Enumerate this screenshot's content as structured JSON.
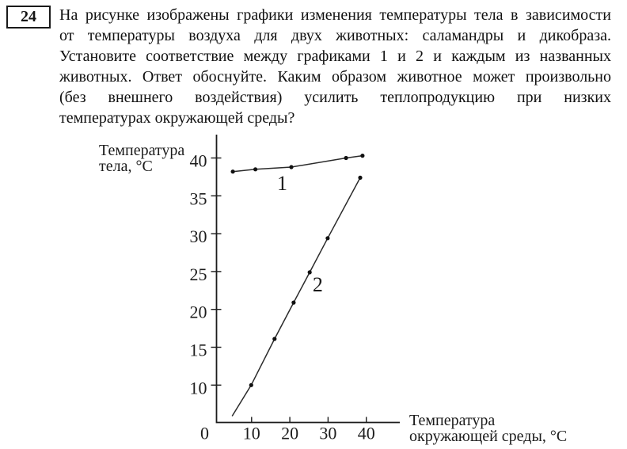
{
  "question": {
    "number": "24",
    "lines": [
      "На рисунке изображены графики изменения температуры тела в зависимости",
      "от температуры воздуха для двух животных: саламандры и дикобраза.",
      "Установите соответствие между графиками 1 и 2 и каждым из названных",
      "животных. Ответ обоснуйте. Каким образом животное может произвольно",
      "(без внешнего воздействия) усилить теплопродукцию при низких",
      "температурах окружающей среды?"
    ]
  },
  "chart_data": {
    "type": "line",
    "title": "",
    "ylabel_lines": [
      "Температура",
      "тела, °C"
    ],
    "xlabel_lines": [
      "Температура",
      "окружающей среды, °C"
    ],
    "origin_label": "0",
    "x_ticks": [
      10,
      20,
      30,
      40
    ],
    "y_ticks": [
      10,
      15,
      20,
      25,
      30,
      35,
      40
    ],
    "xlim": [
      0,
      49
    ],
    "ylim": [
      5,
      43
    ],
    "grid": false,
    "legend": "inline-numeric-labels",
    "ink_color": "#1c1c1c",
    "series": [
      {
        "name": "graph-1",
        "label": "1",
        "label_pos": [
          18,
          36.7
        ],
        "points": [
          [
            5.1,
            38.2
          ],
          [
            11,
            38.5
          ],
          [
            20.4,
            38.8
          ],
          [
            34.7,
            40.0
          ],
          [
            39,
            40.3
          ]
        ]
      },
      {
        "name": "graph-2",
        "label": "2",
        "label_pos": [
          27.3,
          23.3
        ],
        "line_start": [
          4.9,
          5.9
        ],
        "points": [
          [
            9.9,
            10
          ],
          [
            16,
            16.1
          ],
          [
            21,
            20.9
          ],
          [
            25.2,
            24.9
          ],
          [
            29.9,
            29.4
          ],
          [
            38.4,
            37.4
          ]
        ]
      }
    ]
  }
}
